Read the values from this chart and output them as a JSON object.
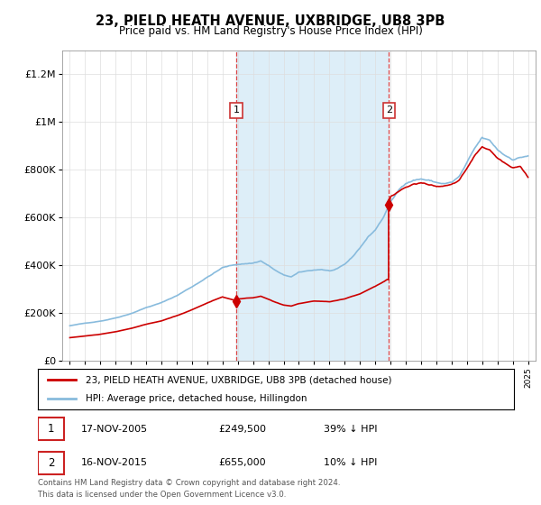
{
  "title": "23, PIELD HEATH AVENUE, UXBRIDGE, UB8 3PB",
  "subtitle": "Price paid vs. HM Land Registry's House Price Index (HPI)",
  "red_line_label": "23, PIELD HEATH AVENUE, UXBRIDGE, UB8 3PB (detached house)",
  "blue_line_label": "HPI: Average price, detached house, Hillingdon",
  "sale1_x": 2005.9,
  "sale1_price": 249500,
  "sale1_label": "1",
  "sale1_date": "17-NOV-2005",
  "sale1_note": "39% ↓ HPI",
  "sale2_x": 2015.9,
  "sale2_price": 655000,
  "sale2_label": "2",
  "sale2_date": "16-NOV-2015",
  "sale2_note": "10% ↓ HPI",
  "footer_line1": "Contains HM Land Registry data © Crown copyright and database right 2024.",
  "footer_line2": "This data is licensed under the Open Government Licence v3.0.",
  "shade_color": "#ddeef8",
  "vline_color": "#dd4444",
  "red_color": "#cc0000",
  "blue_color": "#88bbdd",
  "ylim_max": 1300000,
  "xlim_min": 1994.5,
  "xlim_max": 2025.5
}
